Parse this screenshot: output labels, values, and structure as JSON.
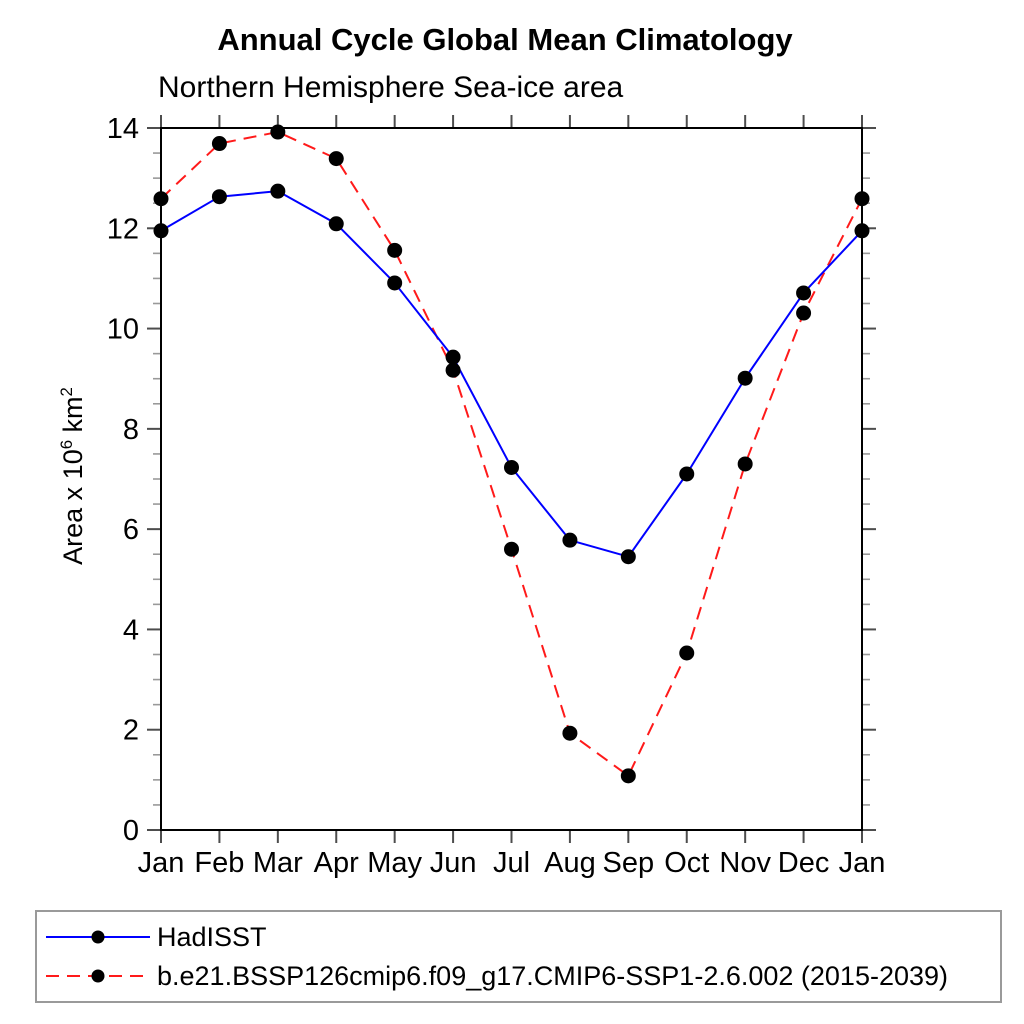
{
  "chart_data": {
    "type": "line",
    "title": "Annual Cycle Global Mean Climatology",
    "subtitle": "Northern Hemisphere Sea-ice area",
    "ylabel_text": "Area x 10^6 km^2",
    "ylabel_parts": {
      "base": "Area x 10",
      "exp": "6",
      "unit": " km",
      "unit_exp": "2"
    },
    "categories": [
      "Jan",
      "Feb",
      "Mar",
      "Apr",
      "May",
      "Jun",
      "Jul",
      "Aug",
      "Sep",
      "Oct",
      "Nov",
      "Dec",
      "Jan"
    ],
    "ylim": [
      0,
      14
    ],
    "ytick_major": [
      0,
      2,
      4,
      6,
      8,
      10,
      12,
      14
    ],
    "ytick_minor_step": 0.5,
    "grid": false,
    "legend_position": "bottom-left-box",
    "marker_color": "#000000",
    "series": [
      {
        "name": "HadISST",
        "color": "#0000ff",
        "style": "solid",
        "marker": "filled-circle",
        "values": [
          11.95,
          12.63,
          12.74,
          12.09,
          10.91,
          9.43,
          7.23,
          5.78,
          5.45,
          7.1,
          9.01,
          10.71,
          11.95
        ]
      },
      {
        "name": "b.e21.BSSP126cmip6.f09_g17.CMIP6-SSP1-2.6.002 (2015-2039)",
        "color": "#ff1a1a",
        "style": "dashed",
        "marker": "filled-circle",
        "values": [
          12.59,
          13.69,
          13.92,
          13.39,
          11.56,
          9.17,
          5.6,
          1.93,
          1.08,
          3.53,
          7.3,
          10.31,
          12.59
        ]
      }
    ]
  }
}
